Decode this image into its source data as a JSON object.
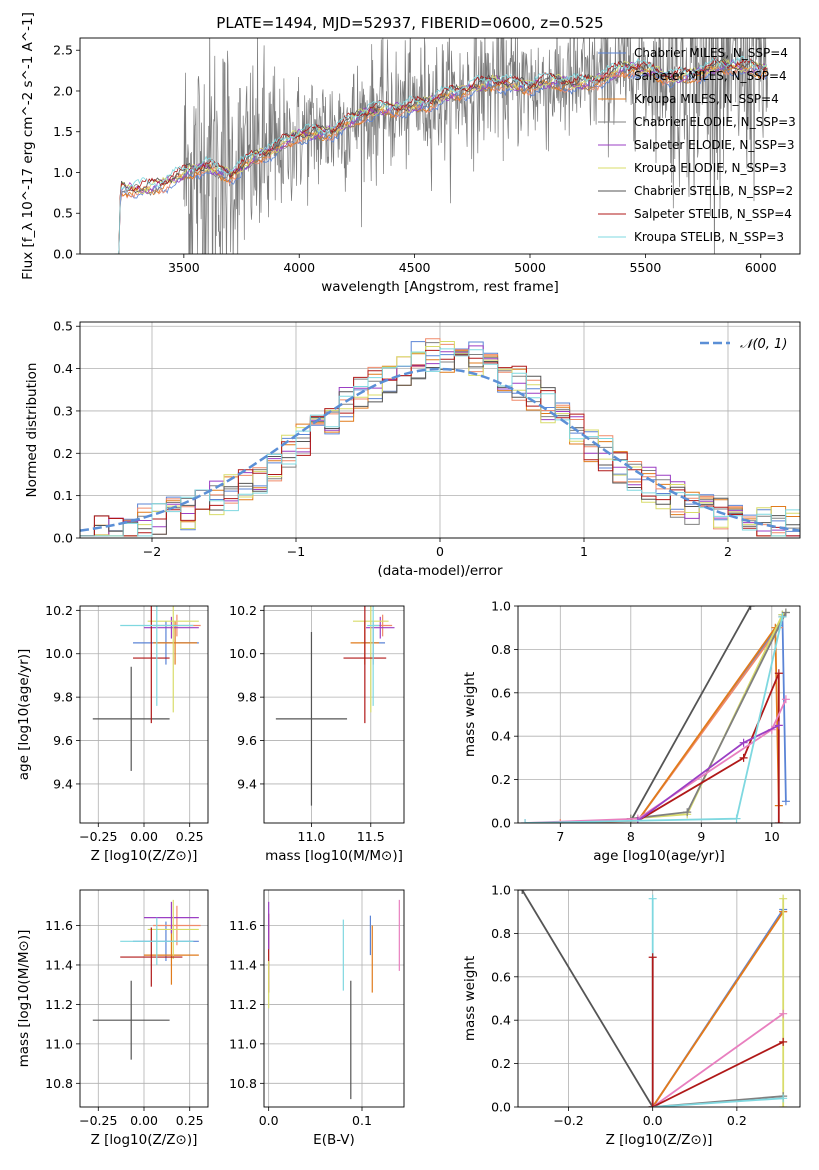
{
  "figure_title": "PLATE=1494, MJD=52937, FIBERID=0600, z=0.525",
  "colors": {
    "Chabrier MILES": "#5b84d6",
    "Salpeter MILES": "#f08a6a",
    "Kroupa MILES": "#e07b1c",
    "Chabrier ELODIE": "#808080",
    "Salpeter ELODIE": "#9b3fc4",
    "Kroupa ELODIE": "#d8dc6a",
    "Chabrier STELIB": "#555555",
    "Salpeter STELIB": "#b01818",
    "Kroupa STELIB": "#7fd8e0",
    "normal": "#5b8fd6",
    "pink": "#e87fbf",
    "grid": "#b0b0b0"
  },
  "chart_data": [
    {
      "type": "line",
      "title": "PLATE=1494, MJD=52937, FIBERID=0600, z=0.525",
      "xlabel": "wavelength [Angstrom, rest frame]",
      "ylabel": "Flux [f_λ 10^-17 erg cm^-2 s^-1 A^-1]",
      "xlim": [
        3050,
        6170
      ],
      "ylim": [
        0,
        2.65
      ],
      "xticks": [
        "3500",
        "4000",
        "4500",
        "5000",
        "5500",
        "6000"
      ],
      "yticks": [
        "0.0",
        "0.5",
        "1.0",
        "1.5",
        "2.0",
        "2.5"
      ],
      "grid": false,
      "legend_position": "right",
      "model_anchors": {
        "x": [
          3200,
          3230,
          3350,
          3500,
          3600,
          3700,
          3800,
          3900,
          4000,
          4150,
          4300,
          4500,
          4700,
          4850,
          5000,
          5200,
          5400,
          5600,
          5800,
          6000
        ],
        "y": [
          0.0,
          0.78,
          0.85,
          0.95,
          1.05,
          1.0,
          1.2,
          1.25,
          1.45,
          1.55,
          1.7,
          1.85,
          1.95,
          2.15,
          2.05,
          2.1,
          2.25,
          2.2,
          2.25,
          2.3
        ]
      },
      "series": [
        {
          "name": "Chabrier MILES, N_SSP=4"
        },
        {
          "name": "Salpeter MILES, N_SSP=4"
        },
        {
          "name": "Kroupa MILES, N_SSP=4"
        },
        {
          "name": "Chabrier ELODIE, N_SSP=3"
        },
        {
          "name": "Salpeter ELODIE, N_SSP=3"
        },
        {
          "name": "Kroupa ELODIE, N_SSP=3"
        },
        {
          "name": "Chabrier STELIB, N_SSP=2"
        },
        {
          "name": "Salpeter STELIB, N_SSP=4"
        },
        {
          "name": "Kroupa STELIB, N_SSP=3"
        }
      ]
    },
    {
      "type": "line",
      "xlabel": "(data-model)/error",
      "ylabel": "Normed distribution",
      "xlim": [
        -2.5,
        2.5
      ],
      "ylim": [
        0,
        0.51
      ],
      "xticks": [
        "−2",
        "−1",
        "0",
        "1",
        "2"
      ],
      "yticks": [
        "0.0",
        "0.1",
        "0.2",
        "0.3",
        "0.4",
        "0.5"
      ],
      "grid": true,
      "legend_position": "top-right",
      "legend": "𝒩(0, 1)",
      "histogram_bin_width": 0.1
    },
    {
      "type": "scatter",
      "xlabel": "Z [log10(Z/Z⊙)]",
      "ylabel": "age  [log10(age/yr)]",
      "xlim": [
        -0.35,
        0.35
      ],
      "ylim": [
        9.22,
        10.22
      ],
      "xticks": [
        "−0.25",
        "0.00",
        "0.25"
      ],
      "yticks": [
        "9.4",
        "9.6",
        "9.8",
        "10.0",
        "10.2"
      ],
      "grid": true,
      "points": [
        {
          "series": "Chabrier MILES",
          "x": 0.12,
          "y": 10.05,
          "xerr": 0.18,
          "yerr": 0.1
        },
        {
          "series": "Salpeter MILES",
          "x": 0.18,
          "y": 10.13,
          "xerr": 0.13,
          "yerr": 0.05
        },
        {
          "series": "Kroupa MILES",
          "x": 0.17,
          "y": 10.05,
          "xerr": 0.12,
          "yerr": 0.1
        },
        {
          "series": "Salpeter ELODIE",
          "x": 0.15,
          "y": 10.12,
          "xerr": 0.15,
          "yerr": 0.05
        },
        {
          "series": "Kroupa ELODIE",
          "x": 0.16,
          "y": 10.15,
          "xerr": 0.14,
          "yerr": 0.42
        },
        {
          "series": "Chabrier STELIB",
          "x": -0.07,
          "y": 9.7,
          "xerr": 0.21,
          "yerr": 0.24
        },
        {
          "series": "Salpeter STELIB",
          "x": 0.04,
          "y": 9.98,
          "xerr": 0.1,
          "yerr": 0.3
        },
        {
          "series": "Kroupa STELIB",
          "x": 0.07,
          "y": 10.13,
          "xerr": 0.2,
          "yerr": 0.37
        }
      ]
    },
    {
      "type": "scatter",
      "xlabel": "mass [log10(M/M⊙)]",
      "ylabel": "",
      "xlim": [
        10.6,
        11.78
      ],
      "ylim": [
        9.22,
        10.22
      ],
      "xticks": [
        "11.0",
        "11.5"
      ],
      "yticks": [
        "9.4",
        "9.6",
        "9.8",
        "10.0",
        "10.2"
      ],
      "grid": true,
      "points": [
        {
          "series": "Chabrier MILES",
          "x": 11.52,
          "y": 10.05,
          "xerr": 0.1,
          "yerr": 0.1
        },
        {
          "series": "Salpeter MILES",
          "x": 11.6,
          "y": 10.13,
          "xerr": 0.08,
          "yerr": 0.05
        },
        {
          "series": "Kroupa MILES",
          "x": 11.45,
          "y": 10.05,
          "xerr": 0.12,
          "yerr": 0.1
        },
        {
          "series": "Salpeter ELODIE",
          "x": 11.58,
          "y": 10.12,
          "xerr": 0.12,
          "yerr": 0.05
        },
        {
          "series": "Kroupa ELODIE",
          "x": 11.5,
          "y": 10.15,
          "xerr": 0.15,
          "yerr": 0.42
        },
        {
          "series": "Chabrier STELIB",
          "x": 11.0,
          "y": 9.7,
          "xerr": 0.3,
          "yerr": 0.4
        },
        {
          "series": "Salpeter STELIB",
          "x": 11.45,
          "y": 9.98,
          "xerr": 0.18,
          "yerr": 0.3
        },
        {
          "series": "Kroupa STELIB",
          "x": 11.52,
          "y": 10.13,
          "xerr": 0.05,
          "yerr": 0.37
        }
      ]
    },
    {
      "type": "line",
      "xlabel": "age  [log10(age/yr)]",
      "ylabel": "mass weight",
      "xlim": [
        6.4,
        10.4
      ],
      "ylim": [
        0,
        1.0
      ],
      "xticks": [
        "7",
        "8",
        "9",
        "10"
      ],
      "yticks": [
        "0.0",
        "0.2",
        "0.4",
        "0.6",
        "0.8",
        "1.0"
      ],
      "grid": true,
      "series": [
        {
          "series": "Chabrier STELIB",
          "x": [
            8.0,
            9.7
          ],
          "y": [
            0.01,
            1.0
          ]
        },
        {
          "series": "Chabrier MILES",
          "x": [
            8.1,
            10.1,
            10.15,
            10.2
          ],
          "y": [
            0.01,
            0.91,
            0.96,
            0.1
          ]
        },
        {
          "series": "Salpeter MILES",
          "x": [
            7.0,
            8.1,
            10.1,
            10.15
          ],
          "y": [
            0.0,
            0.01,
            0.9,
            0.95
          ]
        },
        {
          "series": "Kroupa MILES",
          "x": [
            8.1,
            10.05,
            10.1
          ],
          "y": [
            0.01,
            0.9,
            0.08
          ]
        },
        {
          "series": "Kroupa ELODIE",
          "x": [
            8.0,
            8.8,
            10.15,
            10.2
          ],
          "y": [
            0.02,
            0.04,
            0.96,
            0.97
          ]
        },
        {
          "series": "Chabrier ELODIE",
          "x": [
            8.0,
            8.8,
            10.2
          ],
          "y": [
            0.02,
            0.05,
            0.97
          ]
        },
        {
          "series": "Salpeter STELIB",
          "x": [
            8.1,
            9.6,
            10.1,
            10.1
          ],
          "y": [
            0.01,
            0.3,
            0.69,
            0.0
          ]
        },
        {
          "series": "pink",
          "x": [
            6.5,
            8.1,
            10.0,
            10.2
          ],
          "y": [
            0.0,
            0.02,
            0.43,
            0.57
          ]
        },
        {
          "series": "Salpeter ELODIE",
          "x": [
            8.1,
            9.6,
            10.1
          ],
          "y": [
            0.01,
            0.37,
            0.45
          ]
        },
        {
          "series": "Kroupa STELIB",
          "x": [
            6.5,
            9.5,
            10.15
          ],
          "y": [
            0.0,
            0.02,
            0.95
          ]
        }
      ]
    },
    {
      "type": "scatter",
      "xlabel": "Z [log10(Z/Z⊙)]",
      "ylabel": "mass [log10(M/M⊙)]",
      "xlim": [
        -0.35,
        0.35
      ],
      "ylim": [
        10.68,
        11.78
      ],
      "xticks": [
        "−0.25",
        "0.00",
        "0.25"
      ],
      "yticks": [
        "10.8",
        "11.0",
        "11.2",
        "11.4",
        "11.6"
      ],
      "grid": true,
      "points": [
        {
          "series": "Chabrier MILES",
          "x": 0.12,
          "y": 11.52,
          "xerr": 0.18,
          "yerr": 0.1
        },
        {
          "series": "Salpeter MILES",
          "x": 0.18,
          "y": 11.6,
          "xerr": 0.13,
          "yerr": 0.1
        },
        {
          "series": "Kroupa MILES",
          "x": 0.15,
          "y": 11.45,
          "xerr": 0.15,
          "yerr": 0.15
        },
        {
          "series": "Salpeter ELODIE",
          "x": 0.15,
          "y": 11.64,
          "xerr": 0.15,
          "yerr": 0.08
        },
        {
          "series": "Kroupa ELODIE",
          "x": 0.16,
          "y": 11.58,
          "xerr": 0.14,
          "yerr": 0.15
        },
        {
          "series": "Chabrier STELIB",
          "x": -0.07,
          "y": 11.12,
          "xerr": 0.21,
          "yerr": 0.2
        },
        {
          "series": "Salpeter STELIB",
          "x": 0.04,
          "y": 11.44,
          "xerr": 0.17,
          "yerr": 0.15
        },
        {
          "series": "Kroupa STELIB",
          "x": 0.07,
          "y": 11.52,
          "xerr": 0.2,
          "yerr": 0.12
        }
      ]
    },
    {
      "type": "scatter",
      "xlabel": "E(B-V)",
      "ylabel": "",
      "xlim": [
        -0.005,
        0.145
      ],
      "ylim": [
        10.68,
        11.78
      ],
      "xticks": [
        "0.0",
        "0.1"
      ],
      "yticks": [
        "10.8",
        "11.0",
        "11.2",
        "11.4",
        "11.6"
      ],
      "grid": true,
      "points": [
        {
          "series": "Salpeter STELIB",
          "x": 0.0,
          "y": 11.46,
          "yerr": 0.2
        },
        {
          "series": "Kroupa ELODIE",
          "x": 0.0,
          "y": 11.3,
          "yerr": 0.12
        },
        {
          "series": "Salpeter ELODIE",
          "x": 0.0,
          "y": 11.6,
          "yerr": 0.12
        },
        {
          "series": "Kroupa STELIB",
          "x": 0.08,
          "y": 11.45,
          "yerr": 0.18
        },
        {
          "series": "Chabrier STELIB",
          "x": 0.088,
          "y": 11.02,
          "yerr": 0.3
        },
        {
          "series": "Kroupa MILES",
          "x": 0.111,
          "y": 11.43,
          "yerr": 0.17
        },
        {
          "series": "Chabrier MILES",
          "x": 0.109,
          "y": 11.55,
          "yerr": 0.1
        },
        {
          "series": "pink",
          "x": 0.14,
          "y": 11.55,
          "yerr": 0.18
        }
      ]
    },
    {
      "type": "line",
      "xlabel": "Z [log10(Z/Z⊙)]",
      "ylabel": "mass weight",
      "xlim": [
        -0.32,
        0.35
      ],
      "ylim": [
        0,
        1.0
      ],
      "xticks": [
        "−0.2",
        "0.0",
        "0.2"
      ],
      "yticks": [
        "0.0",
        "0.2",
        "0.4",
        "0.6",
        "0.8",
        "1.0"
      ],
      "grid": true,
      "series": [
        {
          "series": "Chabrier STELIB",
          "x": [
            -0.31,
            0.0
          ],
          "y": [
            1.0,
            0.0
          ]
        },
        {
          "series": "Chabrier MILES",
          "x": [
            0.0,
            0.31
          ],
          "y": [
            0.0,
            0.91
          ]
        },
        {
          "series": "Salpeter MILES",
          "x": [
            0.0,
            0.31
          ],
          "y": [
            0.0,
            0.9
          ]
        },
        {
          "series": "Kroupa MILES",
          "x": [
            0.0,
            0.31
          ],
          "y": [
            0.0,
            0.9
          ]
        },
        {
          "series": "Kroupa ELODIE",
          "x": [
            0.31,
            0.31
          ],
          "y": [
            0.0,
            0.96
          ]
        },
        {
          "series": "pink",
          "x": [
            0.0,
            0.31
          ],
          "y": [
            0.0,
            0.43
          ]
        },
        {
          "series": "Salpeter STELIB",
          "x": [
            0.0,
            0.31
          ],
          "y": [
            0.0,
            0.3
          ]
        },
        {
          "series": "Chabrier ELODIE",
          "x": [
            0.0,
            0.31
          ],
          "y": [
            0.0,
            0.05
          ]
        },
        {
          "series": "Kroupa STELIB",
          "x": [
            0.0,
            0.31
          ],
          "y": [
            0.0,
            0.04
          ]
        },
        {
          "series": "Kroupa STELIB",
          "x": [
            0.0,
            0.0
          ],
          "y": [
            0.0,
            0.96
          ]
        },
        {
          "series": "Salpeter STELIB",
          "x": [
            0.0,
            0.0
          ],
          "y": [
            0.0,
            0.69
          ]
        }
      ]
    }
  ]
}
